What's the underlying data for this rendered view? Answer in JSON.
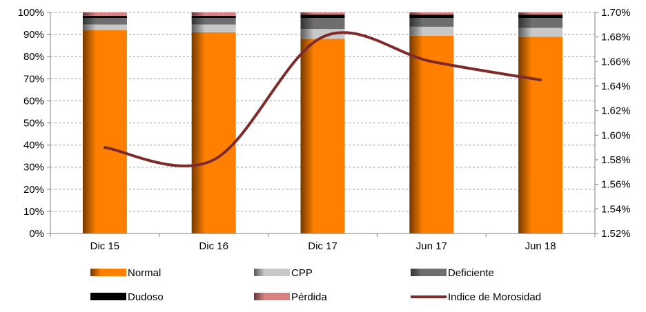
{
  "chart_data": {
    "type": "bar",
    "stacked": true,
    "percent_stacked": true,
    "categories": [
      "Dic 15",
      "Dic 16",
      "Dic 17",
      "Jun 17",
      "Jun 18"
    ],
    "series": [
      {
        "name": "Normal",
        "values": [
          92.0,
          91.0,
          88.0,
          89.5,
          89.0
        ],
        "color": "#ff7f00"
      },
      {
        "name": "CPP",
        "values": [
          2.5,
          3.5,
          4.5,
          4.0,
          4.0
        ],
        "color": "#c8c8c8"
      },
      {
        "name": "Deficiente",
        "values": [
          3.0,
          3.0,
          5.0,
          4.0,
          4.5
        ],
        "color": "#6e6e6e"
      },
      {
        "name": "Dudoso",
        "values": [
          1.0,
          1.0,
          1.5,
          1.5,
          1.5
        ],
        "color": "#000000"
      },
      {
        "name": "Pérdida",
        "values": [
          1.5,
          1.5,
          1.0,
          1.0,
          1.0
        ],
        "color": "#d98080"
      }
    ],
    "line_series": {
      "name": "Indice de Morosidad",
      "axis": "right",
      "values": [
        1.59,
        1.58,
        1.68,
        1.66,
        1.645
      ],
      "color": "#7f2a2a"
    },
    "y_left": {
      "ticks": [
        "0%",
        "10%",
        "20%",
        "30%",
        "40%",
        "50%",
        "60%",
        "70%",
        "80%",
        "90%",
        "100%"
      ],
      "ylim": [
        0,
        100
      ]
    },
    "y_right": {
      "ticks": [
        "1.52%",
        "1.54%",
        "1.56%",
        "1.58%",
        "1.60%",
        "1.62%",
        "1.64%",
        "1.66%",
        "1.68%",
        "1.70%"
      ],
      "ylim": [
        1.52,
        1.7
      ]
    },
    "grid": "horizontal-dashed",
    "legend_position": "bottom",
    "legend": [
      "Normal",
      "CPP",
      "Deficiente",
      "Dudoso",
      "Pérdida",
      "Indice de Morosidad"
    ]
  }
}
